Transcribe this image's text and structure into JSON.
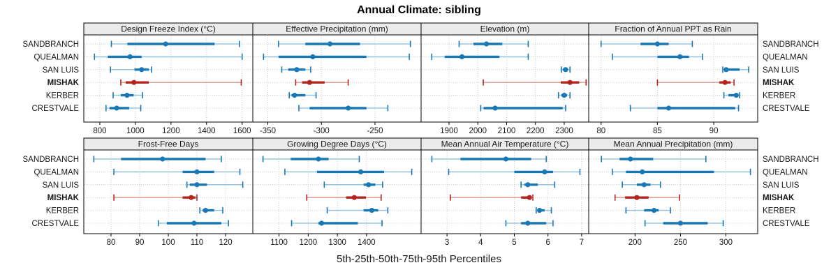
{
  "page": {
    "title": "Annual Climate: sibling",
    "footer": "5th-25th-50th-75th-95th Percentiles"
  },
  "chart_data": {
    "type": "trellis-percentile-dotplot",
    "title": "Annual Climate: sibling",
    "xlabel": "5th-25th-50th-75th-95th Percentiles",
    "percentiles": [
      "5th",
      "25th",
      "50th",
      "75th",
      "95th"
    ],
    "legend_note": "each row shows 5th-25th-50th-75th-95th percentile whisker, IQR bar and median dot",
    "sites": [
      "SANDBRANCH",
      "QUEALMAN",
      "SAN LUIS",
      "MISHAK",
      "KERBER",
      "CRESTVALE"
    ],
    "highlight_site": "MISHAK",
    "colors": {
      "normal": "#1878b4",
      "normal_light": "#9cc6e0",
      "highlight": "#b2241d",
      "highlight_light": "#dfa49e",
      "grid": "#c9c9c9",
      "header_fill": "#ebebeb",
      "border": "#000000",
      "text": "#1a1a1a"
    },
    "rows": [
      {
        "panels": [
          {
            "title": "Design Freeze Index (°C)",
            "ticks": [
              800,
              1000,
              1200,
              1400,
              1600
            ],
            "domain": [
              710,
              1660
            ],
            "series": {
              "SANDBRANCH": [
                865,
                955,
                1170,
                1445,
                1585
              ],
              "QUEALMAN": [
                770,
                845,
                970,
                1035,
                1600
              ],
              "SAN LUIS": [
                860,
                995,
                1035,
                1075,
                1090
              ],
              "MISHAK": [
                918,
                945,
                992,
                1075,
                1595
              ],
              "KERBER": [
                875,
                918,
                953,
                990,
                1040
              ],
              "CRESTVALE": [
                835,
                855,
                895,
                965,
                1030
              ]
            }
          },
          {
            "title": "Effective Precipitation (mm)",
            "ticks": [
              -350,
              -300,
              -250
            ],
            "domain": [
              -364,
              -207
            ],
            "series": {
              "SANDBRANCH": [
                -340,
                -315,
                -292,
                -264,
                -217
              ],
              "QUEALMAN": [
                -354,
                -340,
                -308,
                -258,
                -218
              ],
              "SAN LUIS": [
                -337,
                -331,
                -323,
                -315,
                -310
              ],
              "MISHAK": [
                -324,
                -318,
                -311,
                -297,
                -275
              ],
              "KERBER": [
                -330,
                -328,
                -325,
                -315,
                -305
              ],
              "CRESTVALE": [
                -321,
                -311,
                -275,
                -258,
                -238
              ]
            }
          },
          {
            "title": "Elevation (m)",
            "ticks": [
              1900,
              2000,
              2100,
              2200,
              2300
            ],
            "domain": [
              1803,
              2385
            ],
            "series": {
              "SANDBRANCH": [
                1935,
                1985,
                2030,
                2085,
                2175
              ],
              "QUEALMAN": [
                1840,
                1885,
                1945,
                2075,
                2175
              ],
              "SAN LUIS": [
                2290,
                2295,
                2305,
                2310,
                2320
              ],
              "MISHAK": [
                2019,
                2288,
                2320,
                2352,
                2376
              ],
              "KERBER": [
                2280,
                2290,
                2300,
                2310,
                2320
              ],
              "CRESTVALE": [
                2010,
                2020,
                2060,
                2295,
                2305
              ]
            }
          },
          {
            "title": "Fraction of Annual PPT as Rain",
            "ticks": [
              80,
              85,
              90
            ],
            "domain": [
              78.9,
              93.9
            ],
            "series": {
              "SANDBRANCH": [
                80,
                83.5,
                85,
                86,
                88.1
              ],
              "QUEALMAN": [
                81,
                85,
                87,
                87.8,
                89
              ],
              "SAN LUIS": [
                90.8,
                90.9,
                91.1,
                92.3,
                93.1
              ],
              "MISHAK": [
                85,
                90.5,
                91,
                91.5,
                91.8
              ],
              "KERBER": [
                90.9,
                91.3,
                92,
                92.1,
                92.3
              ],
              "CRESTVALE": [
                82.6,
                85,
                86,
                91.9,
                92.2
              ]
            }
          }
        ]
      },
      {
        "panels": [
          {
            "title": "Frost-Free Days",
            "ticks": [
              80,
              90,
              100,
              110,
              120
            ],
            "domain": [
              70.5,
              129.5
            ],
            "series": {
              "SANDBRANCH": [
                74,
                83.5,
                98,
                113,
                118.5
              ],
              "QUEALMAN": [
                81,
                105,
                110,
                116,
                125
              ],
              "SAN LUIS": [
                106.5,
                107.5,
                110,
                113.5,
                126
              ],
              "MISHAK": [
                81,
                105,
                108,
                109.5,
                110
              ],
              "KERBER": [
                111,
                112,
                113,
                116,
                119
              ],
              "CRESTVALE": [
                96.5,
                99.5,
                109,
                118.5,
                121
              ]
            }
          },
          {
            "title": "Growing Degree Days (°C)",
            "ticks": [
              1100,
              1200,
              1300,
              1400
            ],
            "domain": [
              1010,
              1587
            ],
            "series": {
              "SANDBRANCH": [
                1045,
                1140,
                1235,
                1270,
                1375
              ],
              "QUEALMAN": [
                1120,
                1230,
                1380,
                1460,
                1555
              ],
              "SAN LUIS": [
                1255,
                1390,
                1407,
                1430,
                1455
              ],
              "MISHAK": [
                1195,
                1330,
                1358,
                1398,
                1450
              ],
              "KERBER": [
                1265,
                1390,
                1418,
                1440,
                1473
              ],
              "CRESTVALE": [
                1143,
                1235,
                1246,
                1370,
                1453
              ]
            }
          },
          {
            "title": "Mean Annual Air Temperature (°C)",
            "ticks": [
              3,
              4,
              5,
              6,
              7
            ],
            "domain": [
              2.23,
              7.21
            ],
            "series": {
              "SANDBRANCH": [
                2.55,
                3.4,
                4.75,
                5.5,
                5.95
              ],
              "QUEALMAN": [
                3.05,
                5.0,
                5.9,
                6.15,
                6.95
              ],
              "SAN LUIS": [
                5.2,
                5.3,
                5.4,
                5.7,
                6.2
              ],
              "MISHAK": [
                3.1,
                5.2,
                5.45,
                5.5,
                5.55
              ],
              "KERBER": [
                5.65,
                5.7,
                5.75,
                5.9,
                6.1
              ],
              "CRESTVALE": [
                4.75,
                5.2,
                5.4,
                5.95,
                6.15
              ]
            }
          },
          {
            "title": "Mean Annual Precipitation (mm)",
            "ticks": [
              200,
              250,
              300
            ],
            "domain": [
              149,
              335
            ],
            "series": {
              "SANDBRANCH": [
                163,
                183,
                195,
                220,
                278
              ],
              "QUEALMAN": [
                175,
                190,
                208,
                287,
                327
              ],
              "SAN LUIS": [
                186,
                202,
                210,
                217,
                228
              ],
              "MISHAK": [
                178,
                189,
                202,
                215,
                249
              ],
              "KERBER": [
                190,
                210,
                221,
                226,
                239
              ],
              "CRESTVALE": [
                211,
                231,
                250,
                280,
                297
              ]
            }
          }
        ]
      }
    ]
  }
}
